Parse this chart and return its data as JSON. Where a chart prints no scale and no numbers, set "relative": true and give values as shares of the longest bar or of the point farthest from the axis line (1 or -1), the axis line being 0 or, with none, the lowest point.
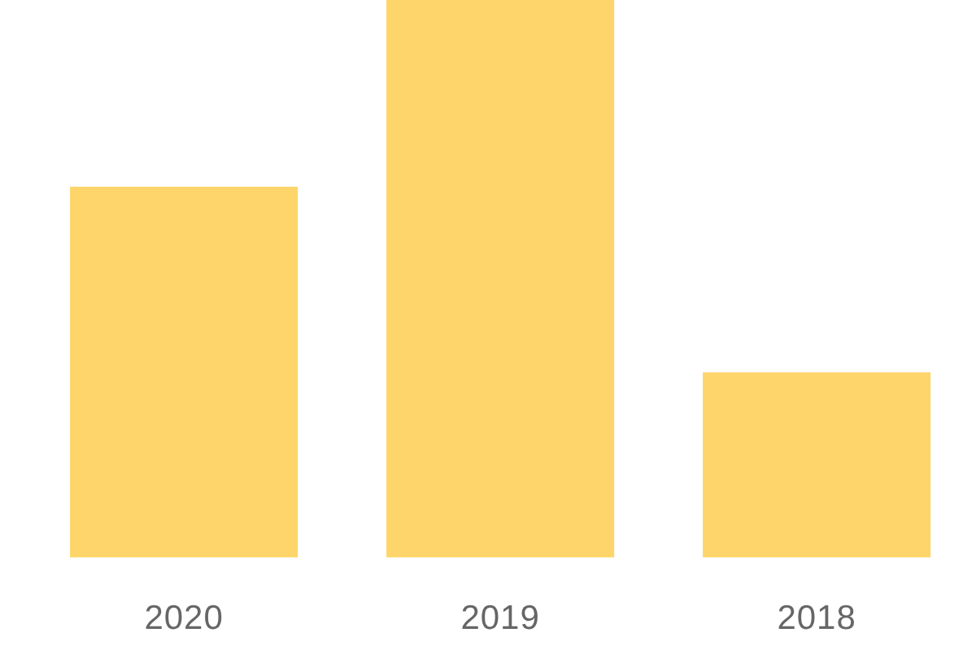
{
  "chart_data": {
    "type": "bar",
    "categories": [
      "2020",
      "2019",
      "2018"
    ],
    "values": [
      0.665,
      1,
      0.332
    ],
    "color": "#fdd56b",
    "relative": true
  }
}
